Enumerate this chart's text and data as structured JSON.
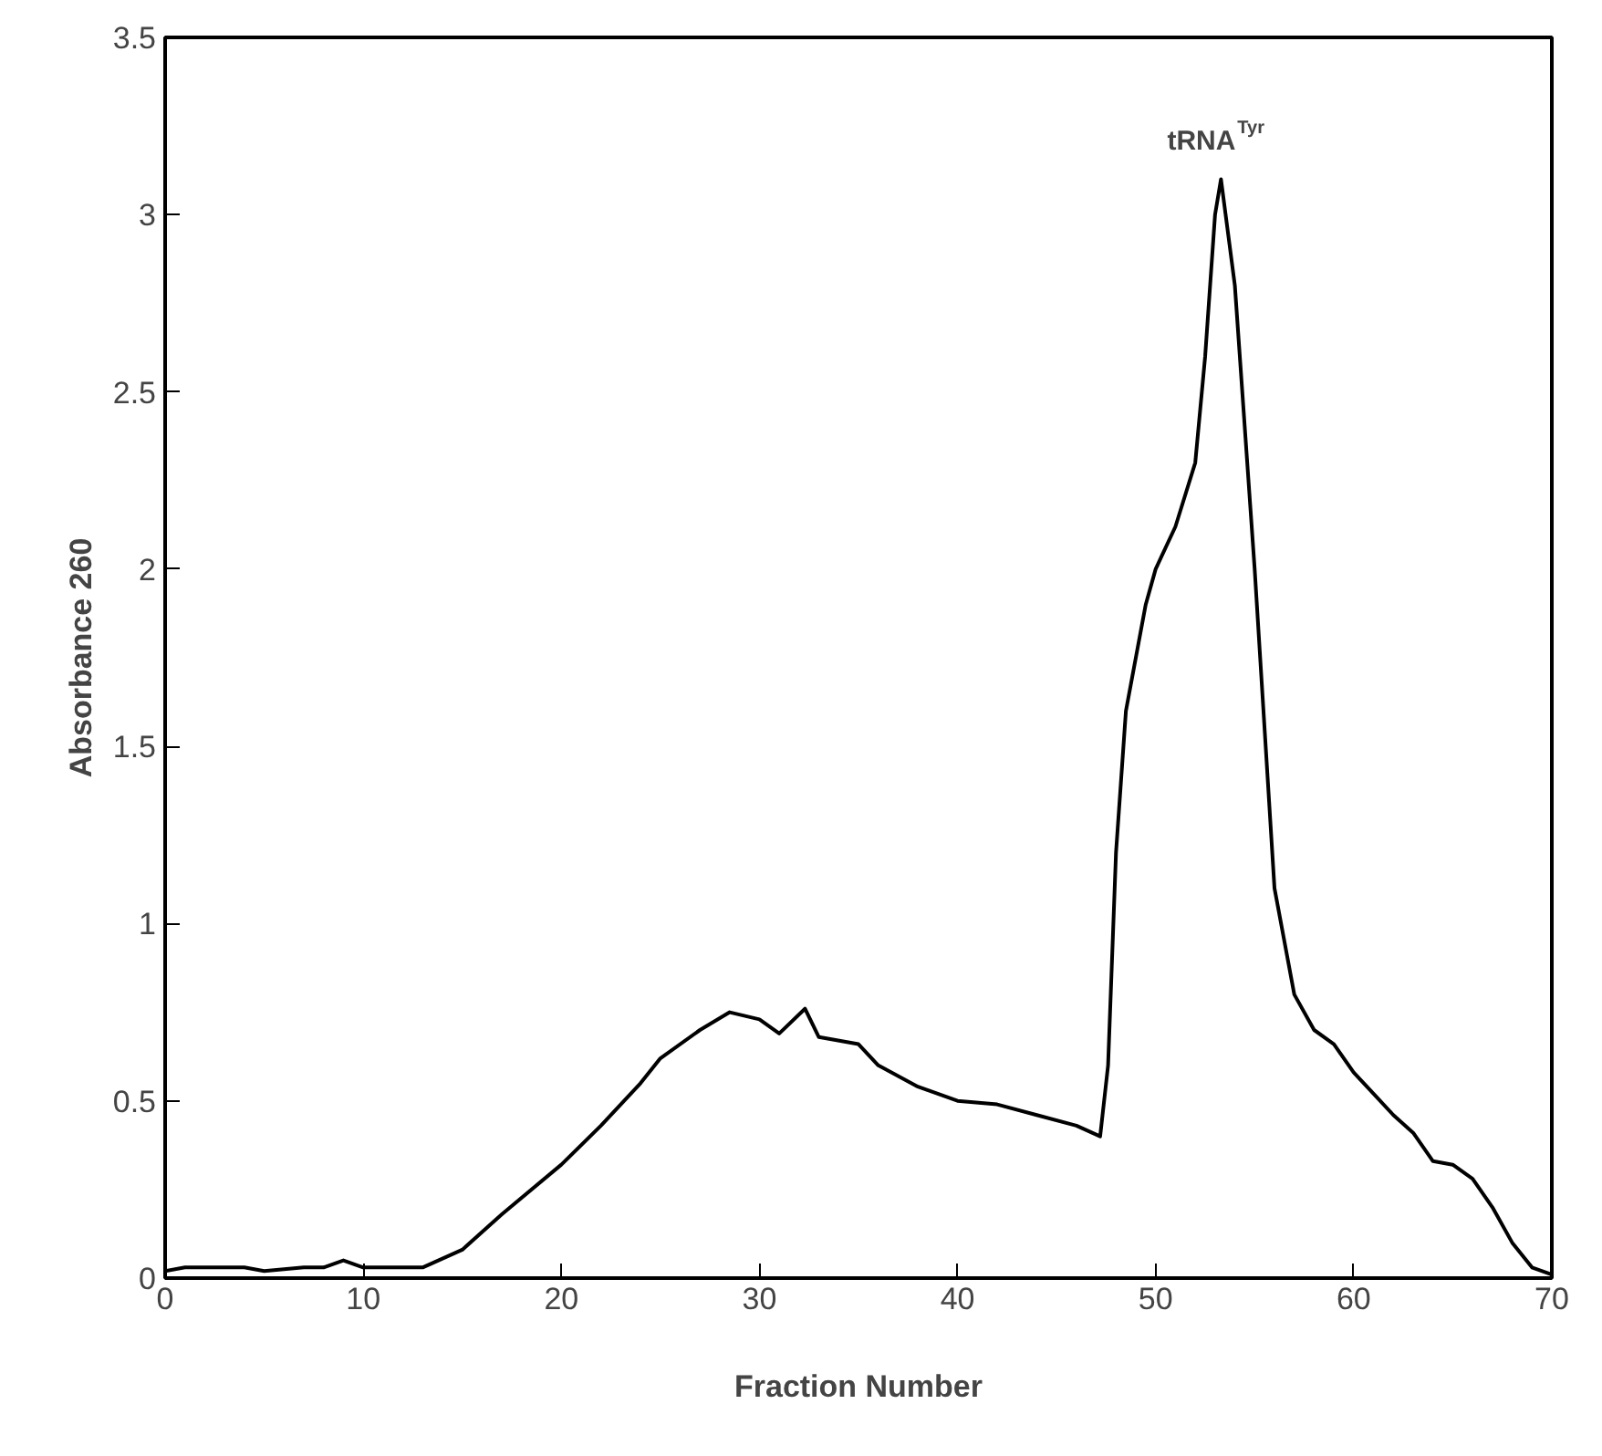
{
  "chart_data": {
    "type": "line",
    "xlabel": "Fraction Number",
    "ylabel": "Absorbance 260",
    "x": [
      0,
      1,
      2,
      4,
      5,
      7,
      8,
      9,
      10,
      11,
      13,
      15,
      17,
      20,
      22,
      24,
      25,
      27,
      28.5,
      30,
      31,
      32.3,
      33,
      35,
      36,
      38,
      40,
      42,
      44,
      46,
      47.2,
      47.6,
      48,
      48.5,
      49.5,
      50,
      51,
      52,
      52.5,
      53,
      53.3,
      54,
      55,
      56,
      57,
      58,
      59,
      60,
      61,
      62,
      63,
      64,
      65,
      66,
      67,
      68,
      69,
      70
    ],
    "series": [
      {
        "color": "#000000",
        "values": [
          0.02,
          0.03,
          0.03,
          0.03,
          0.02,
          0.03,
          0.03,
          0.05,
          0.03,
          0.03,
          0.03,
          0.08,
          0.18,
          0.32,
          0.43,
          0.55,
          0.62,
          0.7,
          0.75,
          0.73,
          0.69,
          0.76,
          0.68,
          0.66,
          0.6,
          0.54,
          0.5,
          0.49,
          0.46,
          0.43,
          0.4,
          0.6,
          1.2,
          1.6,
          1.9,
          2.0,
          2.12,
          2.3,
          2.6,
          3.0,
          3.1,
          2.8,
          2.0,
          1.1,
          0.8,
          0.7,
          0.66,
          0.58,
          0.52,
          0.46,
          0.41,
          0.33,
          0.32,
          0.28,
          0.2,
          0.1,
          0.03,
          0.01
        ]
      }
    ],
    "xlim": [
      0,
      70
    ],
    "ylim": [
      0,
      3.5
    ],
    "xticks": [
      0,
      10,
      20,
      30,
      40,
      50,
      60,
      70
    ],
    "yticks": [
      0,
      0.5,
      1,
      1.5,
      2,
      2.5,
      3,
      3.5
    ],
    "marker": "none",
    "line_style": "solid",
    "annotations": [
      {
        "text": "tRNA$^{Tyr}$",
        "x": 53.3,
        "y": 3.1
      }
    ]
  }
}
